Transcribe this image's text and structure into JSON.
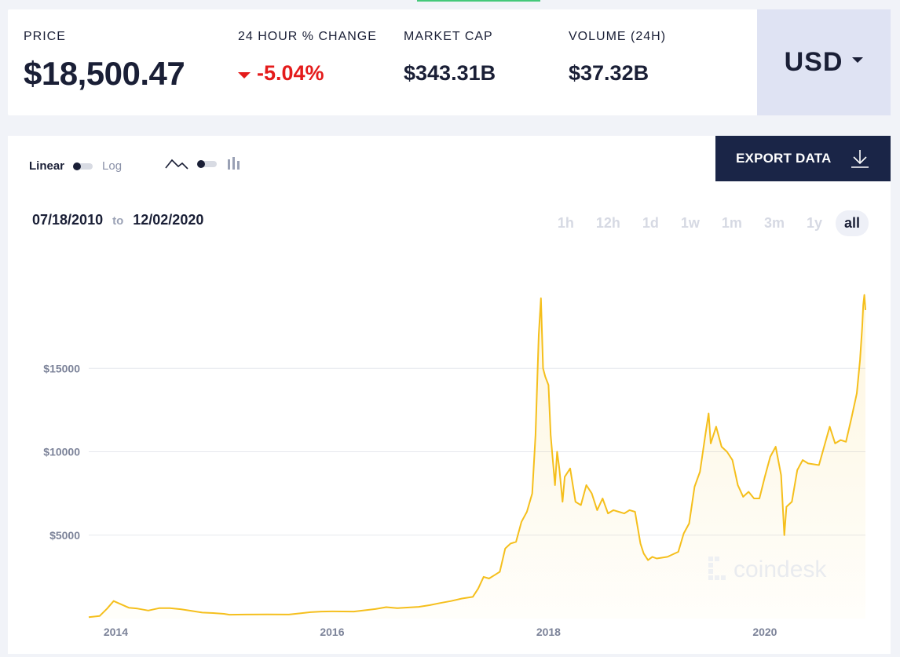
{
  "stats": {
    "price_label": "PRICE",
    "price_value": "$18,500.47",
    "change_label": "24 HOUR % CHANGE",
    "change_value": "-5.04%",
    "cap_label": "MARKET CAP",
    "cap_value": "$343.31B",
    "volume_label": "VOLUME (24H)",
    "volume_value": "$37.32B"
  },
  "currency": {
    "label": "USD"
  },
  "controls": {
    "linear_label": "Linear",
    "log_label": "Log",
    "export_label": "EXPORT DATA"
  },
  "date_range": {
    "from": "07/18/2010",
    "to_label": "to",
    "to": "12/02/2020"
  },
  "range_tabs": [
    "1h",
    "12h",
    "1d",
    "1w",
    "1m",
    "3m",
    "1y",
    "all"
  ],
  "range_active": "all",
  "watermark": "coindesk",
  "colors": {
    "line": "#f5bf1c",
    "change_negative": "#e41b1b",
    "export_bg": "#1a2547",
    "currency_bg": "#dfe3f3"
  },
  "chart_data": {
    "type": "area",
    "ylim": [
      0,
      20000
    ],
    "y_ticks": [
      {
        "value": 5000,
        "label": "$5000"
      },
      {
        "value": 10000,
        "label": "$10000"
      },
      {
        "value": 15000,
        "label": "$15000"
      }
    ],
    "x_ticks": [
      {
        "value": 2014.0,
        "label": "2014"
      },
      {
        "value": 2016.0,
        "label": "2016"
      },
      {
        "value": 2018.0,
        "label": "2018"
      },
      {
        "value": 2020.0,
        "label": "2020"
      }
    ],
    "xlim": [
      2013.75,
      2020.93
    ],
    "grid": true,
    "series": [
      {
        "x": [
          2013.75,
          2013.85,
          2013.92,
          2013.98,
          2014.05,
          2014.12,
          2014.2,
          2014.3,
          2014.4,
          2014.5,
          2014.6,
          2014.7,
          2014.8,
          2014.9,
          2015.0,
          2015.05,
          2015.2,
          2015.4,
          2015.6,
          2015.8,
          2015.9,
          2016.0,
          2016.2,
          2016.4,
          2016.5,
          2016.6,
          2016.8,
          2016.9,
          2017.0,
          2017.1,
          2017.2,
          2017.3,
          2017.35,
          2017.4,
          2017.45,
          2017.5,
          2017.55,
          2017.6,
          2017.65,
          2017.7,
          2017.75,
          2017.8,
          2017.85,
          2017.88,
          2017.91,
          2017.93,
          2017.95,
          2017.97,
          2018.0,
          2018.02,
          2018.04,
          2018.06,
          2018.08,
          2018.1,
          2018.13,
          2018.15,
          2018.2,
          2018.25,
          2018.3,
          2018.35,
          2018.4,
          2018.45,
          2018.5,
          2018.55,
          2018.6,
          2018.65,
          2018.7,
          2018.75,
          2018.8,
          2018.85,
          2018.88,
          2018.92,
          2018.96,
          2019.0,
          2019.1,
          2019.2,
          2019.25,
          2019.3,
          2019.35,
          2019.4,
          2019.45,
          2019.48,
          2019.5,
          2019.55,
          2019.6,
          2019.65,
          2019.7,
          2019.75,
          2019.8,
          2019.85,
          2019.9,
          2019.95,
          2020.0,
          2020.05,
          2020.1,
          2020.15,
          2020.18,
          2020.2,
          2020.25,
          2020.3,
          2020.35,
          2020.4,
          2020.5,
          2020.6,
          2020.65,
          2020.7,
          2020.75,
          2020.8,
          2020.85,
          2020.88,
          2020.9,
          2020.91,
          2020.92,
          2020.93
        ],
        "y": [
          80,
          150,
          600,
          1050,
          850,
          650,
          600,
          480,
          620,
          620,
          560,
          460,
          360,
          330,
          280,
          230,
          240,
          250,
          240,
          380,
          420,
          430,
          420,
          570,
          680,
          620,
          700,
          800,
          930,
          1050,
          1200,
          1300,
          1800,
          2500,
          2400,
          2600,
          2800,
          4200,
          4500,
          4600,
          5800,
          6400,
          7500,
          11000,
          17000,
          19200,
          15000,
          14500,
          14000,
          11000,
          9500,
          8000,
          10000,
          9000,
          7000,
          8500,
          9000,
          7000,
          6800,
          8000,
          7500,
          6500,
          7200,
          6300,
          6500,
          6400,
          6300,
          6500,
          6400,
          4500,
          3900,
          3500,
          3700,
          3600,
          3700,
          4000,
          5100,
          5700,
          7900,
          8800,
          11000,
          12300,
          10500,
          11500,
          10300,
          10000,
          9500,
          8000,
          7300,
          7600,
          7200,
          7200,
          8500,
          9700,
          10300,
          8600,
          5000,
          6700,
          7000,
          8900,
          9500,
          9300,
          9200,
          11500,
          10500,
          10700,
          10600,
          12000,
          13500,
          15500,
          17500,
          18800,
          19400,
          18500
        ]
      }
    ]
  }
}
